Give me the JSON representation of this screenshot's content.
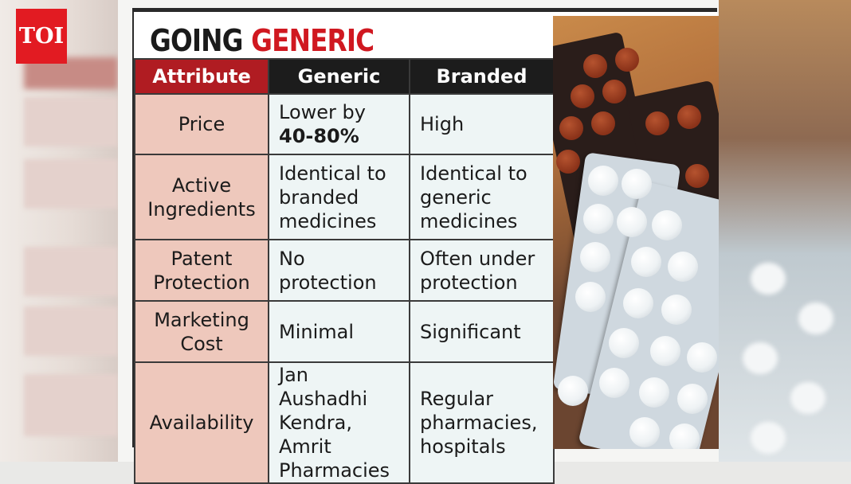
{
  "logo": {
    "text": "TOI",
    "color": "#e21b22"
  },
  "graphic": {
    "title_part1": "GOING",
    "title_part2": "GENERIC",
    "accent_color": "#d01820",
    "table": {
      "headers": {
        "attribute": "Attribute",
        "generic": "Generic",
        "branded": "Branded"
      },
      "rows": [
        {
          "attribute": "Price",
          "generic_prefix": "Lower by",
          "generic_bold": "40-80%",
          "branded": "High"
        },
        {
          "attribute": "Active Ingredients",
          "generic": "Identical to branded medicines",
          "branded": "Identical to generic medicines"
        },
        {
          "attribute": "Patent Protection",
          "generic": "No protection",
          "branded": "Often under protection"
        },
        {
          "attribute": "Marketing Cost",
          "generic": "Minimal",
          "branded": "Significant"
        },
        {
          "attribute": "Availability",
          "generic": "Jan Aushadhi Kendra, Amrit Pharmacies",
          "branded": "Regular pharmacies, hospitals"
        }
      ]
    }
  },
  "photo": {
    "subject": "blister-packs-of-tablets"
  }
}
